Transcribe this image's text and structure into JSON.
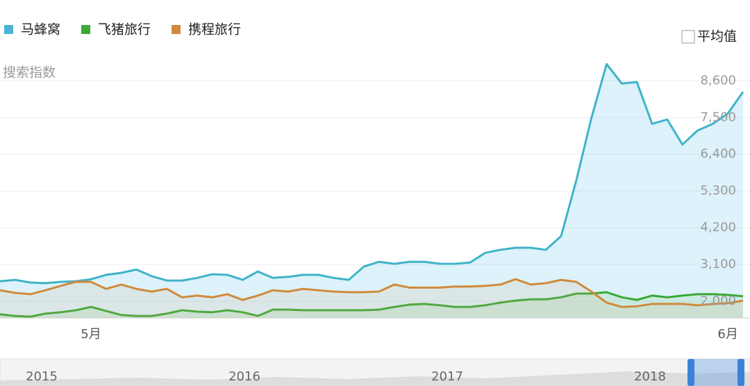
{
  "chart_data": {
    "type": "line",
    "y_axis_label": "搜索指数",
    "average_toggle": "平均值",
    "categories": [
      null,
      null,
      null,
      null,
      null,
      null,
      "5月",
      null,
      null,
      null,
      null,
      null,
      null,
      null,
      null,
      null,
      null,
      null,
      null,
      null,
      null,
      null,
      null,
      null,
      null,
      null,
      null,
      null,
      null,
      null,
      null,
      null,
      null,
      null,
      null,
      null,
      null,
      null,
      null,
      null,
      null,
      null,
      null,
      null,
      null,
      null,
      null,
      null,
      "6月",
      null
    ],
    "ylim": [
      1500,
      9500
    ],
    "yticks": [
      {
        "value": 2000,
        "label": "2,000"
      },
      {
        "value": 3100,
        "label": "3,100"
      },
      {
        "value": 4200,
        "label": "4,200"
      },
      {
        "value": 5300,
        "label": "5,300"
      },
      {
        "value": 6400,
        "label": "6,400"
      },
      {
        "value": 7500,
        "label": "7,500"
      },
      {
        "value": 8600,
        "label": "8,600"
      }
    ],
    "grid": true,
    "navigator_labels": [
      "2015",
      "2016",
      "2017",
      "2018"
    ],
    "series": [
      {
        "name": "马蜂窝",
        "color": "#3fb3c9",
        "fill": "rgba(120,205,235,0.25)",
        "legend_color": "#4bb3d6",
        "values": [
          2600,
          2640,
          2560,
          2540,
          2580,
          2600,
          2660,
          2790,
          2850,
          2950,
          2750,
          2620,
          2620,
          2700,
          2810,
          2790,
          2640,
          2890,
          2700,
          2730,
          2790,
          2790,
          2700,
          2640,
          3040,
          3180,
          3120,
          3180,
          3180,
          3120,
          3120,
          3160,
          3450,
          3540,
          3600,
          3600,
          3540,
          3950,
          5610,
          7480,
          9100,
          8520,
          8560,
          7310,
          7440,
          6690,
          7110,
          7310,
          7620,
          8270
        ]
      },
      {
        "name": "飞猪旅行",
        "color": "#3aa935",
        "fill": "rgba(120,200,110,0.18)",
        "legend_color": "#3aa935",
        "values": [
          1610,
          1560,
          1540,
          1630,
          1670,
          1730,
          1830,
          1710,
          1590,
          1560,
          1560,
          1630,
          1730,
          1690,
          1670,
          1730,
          1670,
          1560,
          1750,
          1750,
          1730,
          1730,
          1730,
          1730,
          1730,
          1750,
          1830,
          1900,
          1920,
          1880,
          1830,
          1830,
          1880,
          1960,
          2020,
          2060,
          2060,
          2120,
          2230,
          2230,
          2270,
          2120,
          2040,
          2170,
          2120,
          2170,
          2210,
          2210,
          2190,
          2150
        ]
      },
      {
        "name": "携程旅行",
        "color": "#d08a3c",
        "fill": "rgba(210,170,120,0.15)",
        "legend_color": "#d08a3c",
        "values": [
          2330,
          2250,
          2210,
          2330,
          2460,
          2580,
          2580,
          2370,
          2500,
          2370,
          2290,
          2370,
          2120,
          2170,
          2120,
          2210,
          2040,
          2170,
          2330,
          2290,
          2370,
          2330,
          2290,
          2270,
          2270,
          2290,
          2500,
          2410,
          2410,
          2410,
          2440,
          2440,
          2460,
          2500,
          2660,
          2500,
          2540,
          2640,
          2580,
          2290,
          1960,
          1830,
          1850,
          1920,
          1920,
          1920,
          1880,
          1920,
          1940,
          2020
        ]
      }
    ]
  }
}
